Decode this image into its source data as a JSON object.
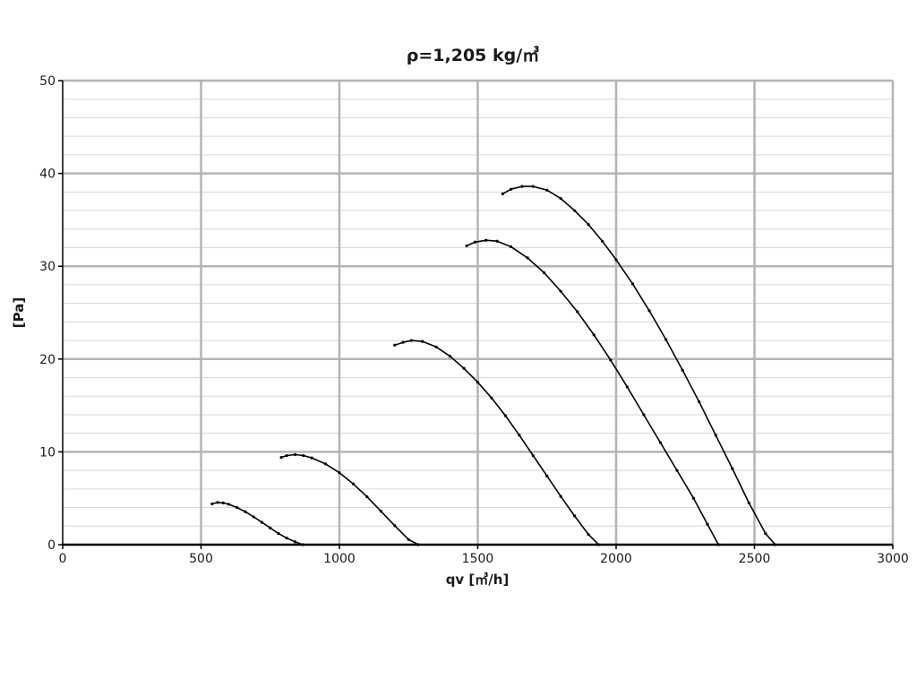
{
  "chart_data": {
    "type": "line",
    "title": "ρ=1,205 kg/㎥",
    "xlabel": "qv [㎥/h]",
    "ylabel": "[Pa]",
    "xlim": [
      0,
      3000
    ],
    "ylim": [
      0,
      50
    ],
    "x_ticks": [
      "0",
      "500",
      "1000",
      "1500",
      "2000",
      "2500",
      "3000"
    ],
    "y_ticks": [
      "0",
      "10",
      "20",
      "30",
      "40",
      "50"
    ],
    "grid": true,
    "colors": {
      "line": "#000000",
      "grid_major": "#b4b4b4",
      "grid_minor": "#d6d6d6",
      "axis": "#000000"
    },
    "series": [
      {
        "x": [
          540,
          560,
          580,
          600,
          630,
          660,
          690,
          720,
          750,
          780,
          810,
          840,
          868
        ],
        "y": [
          4.4,
          4.55,
          4.5,
          4.35,
          4.0,
          3.55,
          3.0,
          2.4,
          1.8,
          1.2,
          0.7,
          0.3,
          0.0
        ]
      },
      {
        "x": [
          790,
          810,
          840,
          870,
          900,
          950,
          1000,
          1050,
          1100,
          1150,
          1200,
          1250,
          1285
        ],
        "y": [
          9.4,
          9.6,
          9.7,
          9.6,
          9.35,
          8.7,
          7.75,
          6.55,
          5.15,
          3.6,
          2.05,
          0.55,
          0.0
        ]
      },
      {
        "x": [
          1200,
          1230,
          1260,
          1300,
          1350,
          1400,
          1450,
          1500,
          1550,
          1600,
          1650,
          1700,
          1750,
          1800,
          1850,
          1900,
          1937
        ],
        "y": [
          21.5,
          21.8,
          22.0,
          21.9,
          21.3,
          20.3,
          19.0,
          17.5,
          15.8,
          13.9,
          11.8,
          9.6,
          7.4,
          5.2,
          3.1,
          1.1,
          0.0
        ]
      },
      {
        "x": [
          1460,
          1490,
          1530,
          1570,
          1620,
          1680,
          1740,
          1800,
          1860,
          1920,
          1980,
          2040,
          2100,
          2160,
          2220,
          2280,
          2330,
          2370
        ],
        "y": [
          32.2,
          32.6,
          32.8,
          32.7,
          32.1,
          30.9,
          29.3,
          27.3,
          25.1,
          22.6,
          19.9,
          17.0,
          14.0,
          11.0,
          8.0,
          5.0,
          2.2,
          0.0
        ]
      },
      {
        "x": [
          1590,
          1620,
          1660,
          1700,
          1750,
          1800,
          1850,
          1900,
          1950,
          2000,
          2060,
          2120,
          2180,
          2240,
          2300,
          2360,
          2420,
          2480,
          2540,
          2575
        ],
        "y": [
          37.8,
          38.3,
          38.6,
          38.6,
          38.2,
          37.3,
          36.0,
          34.5,
          32.7,
          30.7,
          28.1,
          25.2,
          22.1,
          18.8,
          15.4,
          11.8,
          8.2,
          4.5,
          1.2,
          0.0
        ]
      }
    ]
  }
}
